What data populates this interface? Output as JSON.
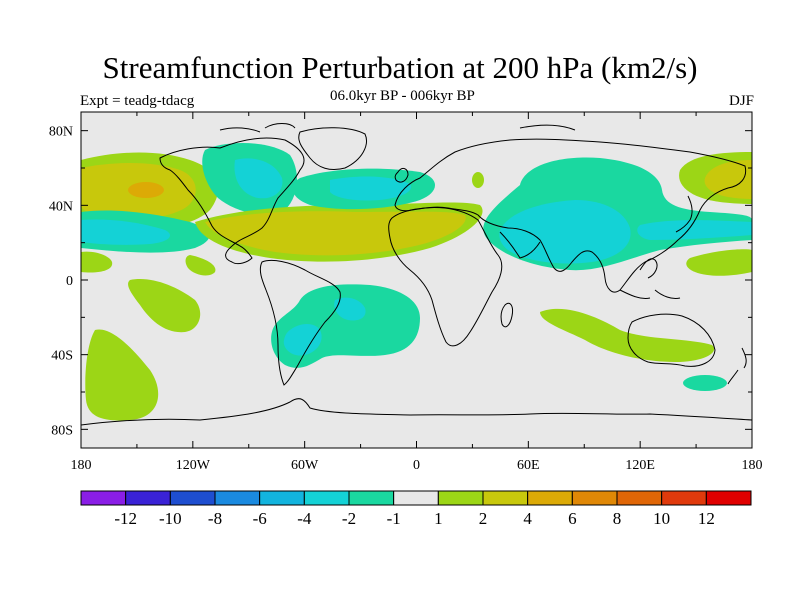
{
  "chart_data": {
    "type": "heatmap",
    "title": "Streamfunction Perturbation at 200 hPa (km2/s)",
    "left_label": "Expt = teadg-tdacg",
    "center_label": "06.0kyr BP - 006kyr BP",
    "right_label": "DJF",
    "x_tick_labels": [
      "180",
      "120W",
      "60W",
      "0",
      "60E",
      "120E",
      "180"
    ],
    "y_tick_labels": [
      "80N",
      "40N",
      "0",
      "40S",
      "80S"
    ],
    "xlim": [
      -180,
      180
    ],
    "ylim": [
      -90,
      90
    ],
    "colorbar_labels": [
      "-12",
      "-10",
      "-8",
      "-6",
      "-4",
      "-2",
      "-1",
      "1",
      "2",
      "4",
      "6",
      "8",
      "10",
      "12"
    ],
    "colorbar_colors": [
      "#8a1ee6",
      "#3a22d6",
      "#1e4ed0",
      "#1a8ae0",
      "#12b4de",
      "#14d2d6",
      "#1ad8a0",
      "#e8e8e8",
      "#9cd616",
      "#c8c80c",
      "#dcaa06",
      "#e08806",
      "#e06606",
      "#e03a0c",
      "#e00000"
    ],
    "contour_regions": [
      {
        "label": "North Pacific positive",
        "level": "2",
        "color": "#9cd616"
      },
      {
        "label": "North Pacific core",
        "level": "4",
        "color": "#c8c80c"
      },
      {
        "label": "North Pacific max",
        "level": "6",
        "color": "#dcaa06"
      },
      {
        "label": "North Atlantic positive",
        "level": "4",
        "color": "#c8c80c"
      },
      {
        "label": "Asia negative",
        "level": "-2",
        "color": "#14d2d6"
      },
      {
        "label": "South Atlantic negative",
        "level": "-2",
        "color": "#14d2d6"
      }
    ]
  }
}
